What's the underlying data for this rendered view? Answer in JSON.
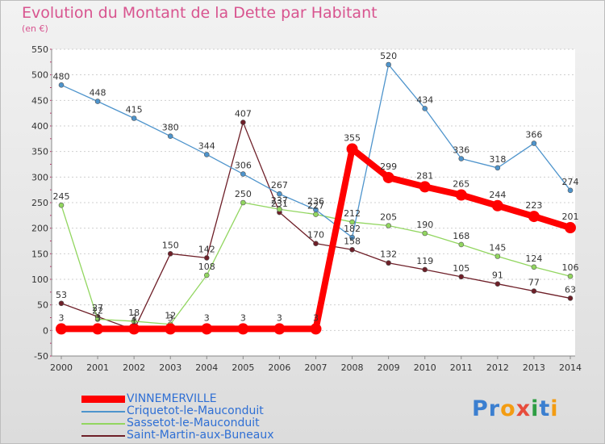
{
  "title": "Evolution du Montant de la Dette par Habitant",
  "subtitle": "(en €)",
  "logo": {
    "letters": [
      "P",
      "r",
      "o",
      "x",
      "i",
      "t",
      "i"
    ],
    "colors": [
      "#3b7fd0",
      "#3b7fd0",
      "#f39c12",
      "#e74c3c",
      "#2e9e44",
      "#3b7fd0",
      "#f39c12"
    ]
  },
  "chart_data": {
    "type": "line",
    "title": "Evolution du Montant de la Dette par Habitant",
    "ylabel": "(en €)",
    "x": [
      "2000",
      "2001",
      "2002",
      "2003",
      "2004",
      "2005",
      "2006",
      "2007",
      "2008",
      "2009",
      "2010",
      "2011",
      "2012",
      "2013",
      "2014"
    ],
    "ylim": [
      -50,
      550
    ],
    "yticks": [
      -50,
      0,
      50,
      100,
      150,
      200,
      250,
      300,
      350,
      400,
      450,
      500,
      550
    ],
    "grid": "horizontal",
    "legend_position": "bottom-left",
    "series": [
      {
        "name": "VINNEMERVILLE",
        "color": "#ff0000",
        "values": [
          3,
          3,
          3,
          3,
          3,
          3,
          3,
          3,
          355,
          299,
          281,
          265,
          244,
          223,
          201
        ],
        "labels": [
          "3",
          "3",
          "3",
          "3",
          "3",
          "3",
          "3",
          "3",
          "355",
          "299",
          "281",
          "265",
          "244",
          "223",
          "201"
        ]
      },
      {
        "name": "Criquetot-le-Mauconduit",
        "color": "#4e94cc",
        "values": [
          480,
          448,
          415,
          380,
          344,
          306,
          267,
          236,
          182,
          520,
          434,
          336,
          318,
          366,
          274
        ],
        "labels": [
          "480",
          "448",
          "415",
          "380",
          "344",
          "306",
          "267",
          "236",
          "182",
          "520",
          "434",
          "336",
          "318",
          "366",
          "274"
        ]
      },
      {
        "name": "Sassetot-le-Mauconduit",
        "color": "#92d660",
        "values": [
          245,
          22,
          18,
          12,
          108,
          250,
          237,
          227,
          212,
          205,
          190,
          168,
          145,
          124,
          106
        ],
        "labels": [
          "245",
          "22",
          "18",
          "12",
          "108",
          "250",
          "237",
          "227",
          "212",
          "205",
          "190",
          "168",
          "145",
          "124",
          "106"
        ]
      },
      {
        "name": "Saint-Martin-aux-Buneaux",
        "color": "#6e1f28",
        "values": [
          53,
          27,
          1,
          150,
          142,
          407,
          231,
          170,
          158,
          132,
          119,
          105,
          91,
          77,
          63
        ],
        "labels": [
          "53",
          "27",
          "1",
          "150",
          "142",
          "407",
          "231",
          "170",
          "158",
          "132",
          "119",
          "105",
          "91",
          "77",
          "63"
        ]
      }
    ]
  }
}
